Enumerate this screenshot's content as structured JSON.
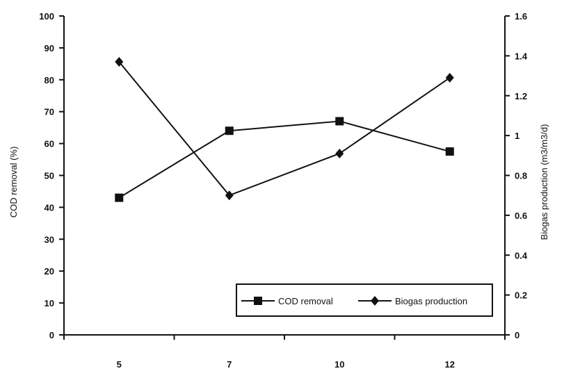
{
  "chart_data": {
    "type": "line",
    "x": [
      "5",
      "7",
      "10",
      "12"
    ],
    "series": [
      {
        "name": "COD removal",
        "axis": "left",
        "marker": "square",
        "values": [
          43,
          64,
          67,
          57.5
        ]
      },
      {
        "name": "Biogas production",
        "axis": "right",
        "marker": "diamond",
        "values": [
          1.37,
          0.7,
          0.91,
          1.29
        ]
      }
    ],
    "y_left": {
      "label": "COD removal (%)",
      "lim": [
        0,
        100
      ],
      "ticks": [
        0,
        10,
        20,
        30,
        40,
        50,
        60,
        70,
        80,
        90,
        100
      ]
    },
    "y_right": {
      "label": "Biogas production (m3/m3/d)",
      "lim": [
        0,
        1.6
      ],
      "ticks": [
        "0",
        "0.2",
        "0.4",
        "0.6",
        "0.8",
        "1",
        "1.2",
        "1.4",
        "1.6"
      ]
    },
    "legend": {
      "placement": "bottom-right",
      "entries": [
        "COD removal",
        "Biogas production"
      ]
    },
    "grid": false,
    "colors": {
      "line": "#111111",
      "background": "#ffffff"
    }
  }
}
